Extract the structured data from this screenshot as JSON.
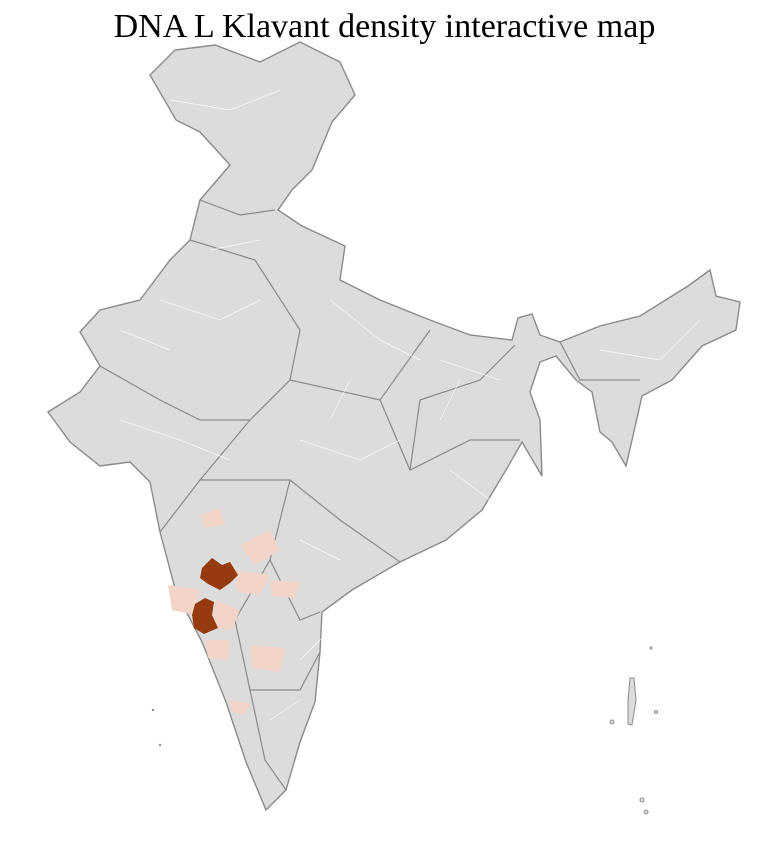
{
  "title": "DNA L Klavant density interactive map",
  "colors": {
    "base_fill": "#dcdcdc",
    "state_border": "#8a8a8a",
    "district_border": "#ffffff",
    "high_density": "#963a0f",
    "low_density": "#f2d5c8"
  },
  "regions": {
    "high_density": [
      "high-density-district-1",
      "high-density-district-2"
    ],
    "low_density_count": 9
  }
}
